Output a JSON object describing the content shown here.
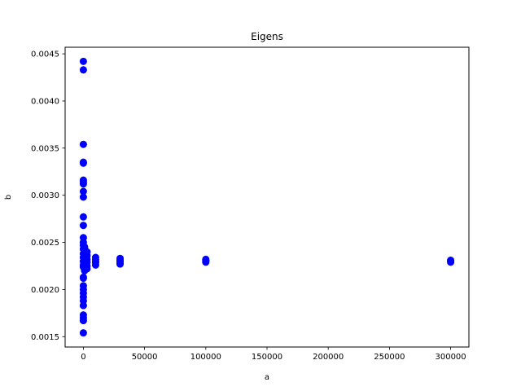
{
  "chart_data": {
    "type": "scatter",
    "title": "Eigens",
    "xlabel": "a",
    "ylabel": "b",
    "xlim": [
      -14900,
      314900
    ],
    "ylim": [
      0.00139,
      0.00457
    ],
    "x_ticks": [
      0,
      50000,
      100000,
      150000,
      200000,
      250000,
      300000
    ],
    "x_tick_labels": [
      "0",
      "50000",
      "100000",
      "150000",
      "200000",
      "250000",
      "300000"
    ],
    "y_ticks": [
      0.0015,
      0.002,
      0.0025,
      0.003,
      0.0035,
      0.004,
      0.0045
    ],
    "y_tick_labels": [
      "0.0015",
      "0.0020",
      "0.0025",
      "0.0030",
      "0.0035",
      "0.0040",
      "0.0045"
    ],
    "grid": false,
    "marker_color": "#0000ff",
    "series": [
      {
        "points": [
          [
            0,
            0.00442
          ],
          [
            0,
            0.00433
          ],
          [
            0,
            0.00354
          ],
          [
            0,
            0.00335
          ],
          [
            0,
            0.00334
          ],
          [
            0,
            0.00316
          ],
          [
            0,
            0.00314
          ],
          [
            0,
            0.00312
          ],
          [
            0,
            0.00304
          ],
          [
            0,
            0.00298
          ],
          [
            0,
            0.00277
          ],
          [
            0,
            0.00268
          ],
          [
            0,
            0.00255
          ],
          [
            0,
            0.0025
          ],
          [
            0,
            0.00247
          ],
          [
            0,
            0.00243
          ],
          [
            0,
            0.00238
          ],
          [
            0,
            0.00234
          ],
          [
            0,
            0.0023
          ],
          [
            0,
            0.00226
          ],
          [
            0,
            0.00224
          ],
          [
            0,
            0.00213
          ],
          [
            0,
            0.00212
          ],
          [
            0,
            0.00204
          ],
          [
            0,
            0.002
          ],
          [
            0,
            0.00196
          ],
          [
            0,
            0.00192
          ],
          [
            0,
            0.00188
          ],
          [
            0,
            0.00183
          ],
          [
            0,
            0.00173
          ],
          [
            0,
            0.0017
          ],
          [
            0,
            0.00167
          ],
          [
            0,
            0.00154
          ],
          [
            1000,
            0.00245
          ],
          [
            1000,
            0.00238
          ],
          [
            1000,
            0.00232
          ],
          [
            1000,
            0.00229
          ],
          [
            1000,
            0.00225
          ],
          [
            1000,
            0.00221
          ],
          [
            1000,
            0.0022
          ],
          [
            3000,
            0.0024
          ],
          [
            3000,
            0.00236
          ],
          [
            3000,
            0.00232
          ],
          [
            3000,
            0.00229
          ],
          [
            3000,
            0.00225
          ],
          [
            3000,
            0.00222
          ],
          [
            10000,
            0.00234
          ],
          [
            10000,
            0.00232
          ],
          [
            10000,
            0.0023
          ],
          [
            10000,
            0.00228
          ],
          [
            10000,
            0.00226
          ],
          [
            30000,
            0.00233
          ],
          [
            30000,
            0.00231
          ],
          [
            30000,
            0.0023
          ],
          [
            30000,
            0.00228
          ],
          [
            30000,
            0.00227
          ],
          [
            100000,
            0.00232
          ],
          [
            100000,
            0.00231
          ],
          [
            100000,
            0.0023
          ],
          [
            100000,
            0.00229
          ],
          [
            300000,
            0.00231
          ],
          [
            300000,
            0.0023
          ],
          [
            300000,
            0.00229
          ]
        ]
      }
    ]
  }
}
